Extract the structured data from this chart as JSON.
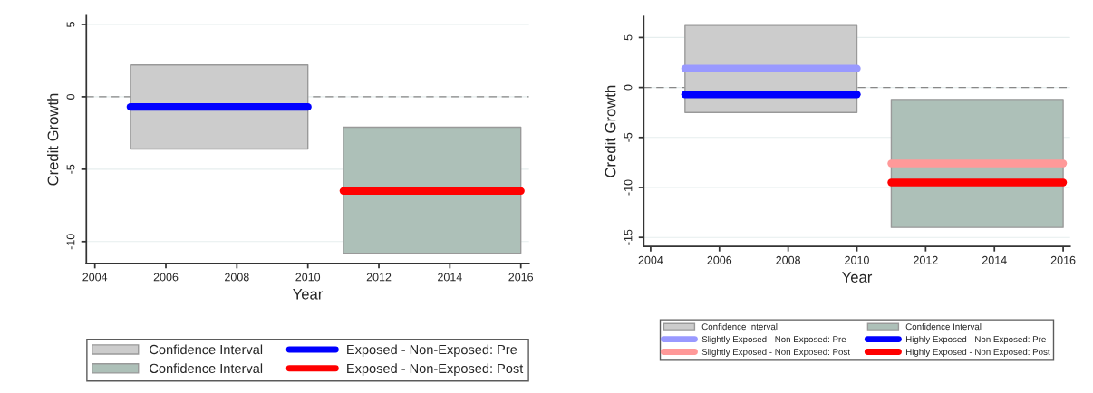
{
  "chart_data": [
    {
      "type": "line",
      "xlabel": "Year",
      "ylabel": "Credit Growth",
      "xlim": [
        2003.76,
        2016.23
      ],
      "ylim": [
        -11.5,
        5.6
      ],
      "xticks": [
        2004,
        2006,
        2008,
        2010,
        2012,
        2014,
        2016
      ],
      "yticks": [
        -10,
        -5,
        0,
        5
      ],
      "grid": "y",
      "legend": "bottom",
      "ref_lines": [
        {
          "axis": "y",
          "value": 0,
          "color": "#888888",
          "line_style": "dashed"
        }
      ],
      "series": [
        {
          "name": "Confidence Interval",
          "color": "#cccccc",
          "x": [
            2005,
            2010
          ],
          "values": [
            null,
            null
          ],
          "lower": [
            -3.6,
            -3.6
          ],
          "upper": [
            2.2,
            2.2
          ]
        },
        {
          "name": "Confidence Interval",
          "color": "#adc0b8",
          "x": [
            2011,
            2016
          ],
          "values": [
            null,
            null
          ],
          "lower": [
            -10.8,
            -10.8
          ],
          "upper": [
            -2.1,
            -2.1
          ]
        },
        {
          "name": "Exposed - Non-Exposed: Pre",
          "color": "#0000ff",
          "x": [
            2005,
            2010
          ],
          "values": [
            -0.7,
            -0.7
          ]
        },
        {
          "name": "Exposed - Non-Exposed: Post",
          "color": "#ff0000",
          "x": [
            2011,
            2016
          ],
          "values": [
            -6.5,
            -6.5
          ]
        }
      ]
    },
    {
      "type": "line",
      "xlabel": "Year",
      "ylabel": "Credit Growth",
      "xlim": [
        2003.8,
        2016.2
      ],
      "ylim": [
        -15.9,
        7.1
      ],
      "xticks": [
        2004,
        2006,
        2008,
        2010,
        2012,
        2014,
        2016
      ],
      "yticks": [
        -15,
        -10,
        -5,
        0,
        5
      ],
      "grid": "y",
      "legend": "bottom",
      "ref_lines": [
        {
          "axis": "y",
          "value": 0,
          "color": "#888888",
          "line_style": "dashed"
        }
      ],
      "series": [
        {
          "name": "Confidence Interval",
          "color": "#cccccc",
          "x": [
            2005,
            2010
          ],
          "values": [
            null,
            null
          ],
          "lower": [
            -2.5,
            -2.5
          ],
          "upper": [
            6.2,
            6.2
          ]
        },
        {
          "name": "Slightly Exposed - Non Exposed: Pre",
          "color": "#9999ff",
          "x": [
            2005,
            2010
          ],
          "values": [
            1.9,
            1.9
          ]
        },
        {
          "name": "Slightly Exposed - Non Exposed: Post",
          "color": "#ff9999",
          "x": [
            2011,
            2016
          ],
          "values": [
            -7.6,
            -7.6
          ]
        },
        {
          "name": "Confidence Interval",
          "color": "#adc0b8",
          "x": [
            2011,
            2016
          ],
          "values": [
            null,
            null
          ],
          "lower": [
            -14,
            -14
          ],
          "upper": [
            -1.2,
            -1.2
          ]
        },
        {
          "name": "Highly Exposed - Non Exposed: Pre",
          "color": "#0000ff",
          "x": [
            2005,
            2010
          ],
          "values": [
            -0.7,
            -0.7
          ]
        },
        {
          "name": "Highly Exposed - Non Exposed: Post",
          "color": "#ff0000",
          "x": [
            2011,
            2016
          ],
          "values": [
            -9.5,
            -9.5
          ]
        }
      ]
    }
  ]
}
